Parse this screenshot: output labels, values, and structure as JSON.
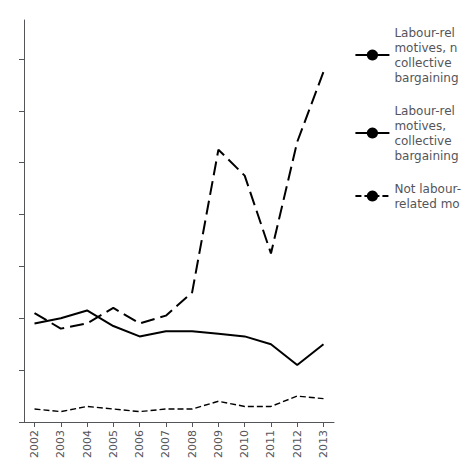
{
  "chart_data": {
    "type": "line",
    "x": [
      2002,
      2003,
      2004,
      2005,
      2006,
      2007,
      2008,
      2009,
      2010,
      2011,
      2012,
      2013
    ],
    "series": [
      {
        "name": "Labour-rel\nmotives, n\ncollective\nbargaining",
        "color": "#000000",
        "line_style": "long_dash",
        "values": [
          42,
          36,
          38,
          44,
          38,
          41,
          50,
          105,
          95,
          65,
          108,
          135
        ]
      },
      {
        "name": "Labour-rel\nmotives,\ncollective\nbargaining",
        "color": "#000000",
        "line_style": "solid",
        "values": [
          38,
          40,
          43,
          37,
          33,
          35,
          35,
          34,
          33,
          30,
          22,
          30
        ]
      },
      {
        "name": "Not labour-\nrelated mo",
        "color": "#000000",
        "line_style": "short_dash",
        "values": [
          5,
          4,
          6,
          5,
          4,
          5,
          5,
          8,
          6,
          6,
          10,
          9
        ]
      }
    ],
    "xlim": [
      2001.6,
      2013.4
    ],
    "xticks": [
      2002,
      2003,
      2004,
      2005,
      2006,
      2007,
      2008,
      2009,
      2010,
      2011,
      2012,
      2013
    ],
    "ylim": [
      0,
      155
    ],
    "yticks": [
      0,
      20,
      40,
      60,
      80,
      100,
      120,
      140
    ],
    "grid": false,
    "legend": "right",
    "tick_labels": "x"
  }
}
